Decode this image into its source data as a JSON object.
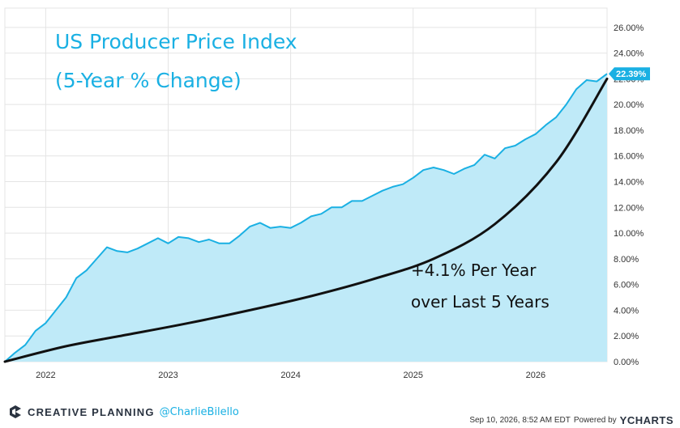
{
  "chart_data": {
    "type": "area",
    "title_line1": "US Producer Price Index",
    "title_line2": "(5-Year % Change)",
    "annotation_line1": "+4.1% Per Year",
    "annotation_line2": "over Last 5 Years",
    "x_ticks": [
      "2022",
      "2023",
      "2024",
      "2025",
      "2026"
    ],
    "y_ticks": [
      "0.00%",
      "2.00%",
      "4.00%",
      "6.00%",
      "8.00%",
      "10.00%",
      "12.00%",
      "14.00%",
      "16.00%",
      "18.00%",
      "20.00%",
      "22.00%",
      "24.00%",
      "26.00%"
    ],
    "ylim": [
      0,
      27.5
    ],
    "xlim": [
      "2021-09",
      "2026-08"
    ],
    "grid": true,
    "last_value_label": "22.39%",
    "series": [
      {
        "values": [
          [
            "2021-09",
            0.0
          ],
          [
            "2021-10",
            0.7
          ],
          [
            "2021-11",
            1.3
          ],
          [
            "2021-12",
            2.4
          ],
          [
            "2022-01",
            3.0
          ],
          [
            "2022-02",
            4.0
          ],
          [
            "2022-03",
            5.0
          ],
          [
            "2022-04",
            6.5
          ],
          [
            "2022-05",
            7.1
          ],
          [
            "2022-06",
            8.0
          ],
          [
            "2022-07",
            8.9
          ],
          [
            "2022-08",
            8.6
          ],
          [
            "2022-09",
            8.5
          ],
          [
            "2022-10",
            8.8
          ],
          [
            "2022-11",
            9.2
          ],
          [
            "2022-12",
            9.6
          ],
          [
            "2023-01",
            9.2
          ],
          [
            "2023-02",
            9.7
          ],
          [
            "2023-03",
            9.6
          ],
          [
            "2023-04",
            9.3
          ],
          [
            "2023-05",
            9.5
          ],
          [
            "2023-06",
            9.2
          ],
          [
            "2023-07",
            9.2
          ],
          [
            "2023-08",
            9.8
          ],
          [
            "2023-09",
            10.5
          ],
          [
            "2023-10",
            10.8
          ],
          [
            "2023-11",
            10.4
          ],
          [
            "2023-12",
            10.5
          ],
          [
            "2024-01",
            10.4
          ],
          [
            "2024-02",
            10.8
          ],
          [
            "2024-03",
            11.3
          ],
          [
            "2024-04",
            11.5
          ],
          [
            "2024-05",
            12.0
          ],
          [
            "2024-06",
            12.0
          ],
          [
            "2024-07",
            12.5
          ],
          [
            "2024-08",
            12.5
          ],
          [
            "2024-09",
            12.9
          ],
          [
            "2024-10",
            13.3
          ],
          [
            "2024-11",
            13.6
          ],
          [
            "2024-12",
            13.8
          ],
          [
            "2025-01",
            14.3
          ],
          [
            "2025-02",
            14.9
          ],
          [
            "2025-03",
            15.1
          ],
          [
            "2025-04",
            14.9
          ],
          [
            "2025-05",
            14.6
          ],
          [
            "2025-06",
            15.0
          ],
          [
            "2025-07",
            15.3
          ],
          [
            "2025-08",
            16.1
          ],
          [
            "2025-09",
            15.8
          ],
          [
            "2025-10",
            16.6
          ],
          [
            "2025-11",
            16.8
          ],
          [
            "2025-12",
            17.3
          ],
          [
            "2026-01",
            17.7
          ],
          [
            "2026-02",
            18.4
          ],
          [
            "2026-03",
            19.0
          ],
          [
            "2026-04",
            20.0
          ],
          [
            "2026-05",
            21.2
          ],
          [
            "2026-06",
            21.9
          ],
          [
            "2026-07",
            21.8
          ],
          [
            "2026-08",
            22.39
          ]
        ],
        "color": "#1ab0e3",
        "fill": "#bfeaf8"
      },
      {
        "values": [
          [
            "2021-09",
            0.0
          ],
          [
            "2022-03",
            1.2
          ],
          [
            "2022-09",
            2.1
          ],
          [
            "2023-03",
            3.0
          ],
          [
            "2023-09",
            4.0
          ],
          [
            "2024-03",
            5.1
          ],
          [
            "2024-09",
            6.4
          ],
          [
            "2025-03",
            8.0
          ],
          [
            "2025-09",
            10.7
          ],
          [
            "2026-03",
            15.5
          ],
          [
            "2026-08",
            22.0
          ]
        ],
        "color": "#111111"
      }
    ]
  },
  "footer": {
    "brand": "CREATIVE PLANNING",
    "handle": "@CharlieBilello",
    "timestamp": "Sep 10, 2026, 8:52 AM EDT",
    "powered_by": "Powered by",
    "provider": "YCHARTS"
  },
  "colors": {
    "accent": "#1ab0e3",
    "area_fill": "#bfeaf8",
    "trend": "#111111",
    "brand_dark": "#2a3340"
  }
}
